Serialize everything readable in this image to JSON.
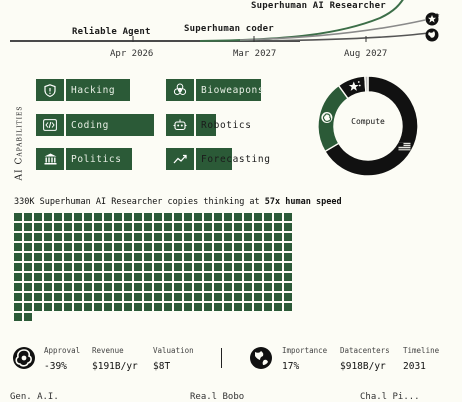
{
  "timeline": {
    "milestones": [
      {
        "label": "Reliable Agent"
      },
      {
        "label": "Superhuman coder"
      },
      {
        "label": "Superhuman AI Researcher"
      }
    ],
    "dates": [
      "Apr 2026",
      "Mar 2027",
      "Aug 2027"
    ],
    "end_icons": [
      "star-flag-icon",
      "globe-icon"
    ]
  },
  "capabilities": {
    "axis_label": "AI Capabilities",
    "items": [
      {
        "label": "Hacking",
        "icon": "shield-icon",
        "level": 0.82
      },
      {
        "label": "Coding",
        "icon": "code-icon",
        "level": 0.93
      },
      {
        "label": "Politics",
        "icon": "capitol-icon",
        "level": 0.65
      },
      {
        "label": "Bioweapons",
        "icon": "biohazard-icon",
        "level": 0.87
      },
      {
        "label": "Robotics",
        "icon": "robot-icon",
        "level": 0.27
      },
      {
        "label": "Forecasting",
        "icon": "chart-trend-icon",
        "level": 0.45
      }
    ]
  },
  "compute": {
    "label": "Compute",
    "segments": [
      {
        "name": "us",
        "icon": "us-flag-icon",
        "share": 0.665,
        "color": "#111111"
      },
      {
        "name": "openbrain",
        "icon": "openbrain-logo-icon",
        "share": 0.235,
        "color": "#2b5a37"
      },
      {
        "name": "china",
        "icon": "china-star-icon",
        "share": 0.09,
        "color": "#111111"
      },
      {
        "name": "other",
        "icon": "",
        "share": 0.01,
        "color": "#bbbbbb"
      }
    ]
  },
  "copies": {
    "count_text": "330K",
    "mid_text": "Superhuman AI Researcher copies thinking at",
    "speed_text": "57x human speed",
    "squares": 282
  },
  "stats": {
    "left": [
      {
        "key": "Approval",
        "value": "-39%"
      },
      {
        "key": "Revenue",
        "value": "$191B/yr"
      },
      {
        "key": "Valuation",
        "value": "$8T"
      }
    ],
    "right": [
      {
        "key": "Importance",
        "value": "17%"
      },
      {
        "key": "Datacenters",
        "value": "$918B/yr"
      },
      {
        "key": "Timeline",
        "value": "2031"
      }
    ]
  },
  "footer_cutoff": [
    "Gen. A.I.",
    "Rea.l Bobo",
    "Cha.l Pi..."
  ],
  "colors": {
    "accent": "#2b5a37",
    "background": "#fcfcf5",
    "ink": "#111111"
  }
}
